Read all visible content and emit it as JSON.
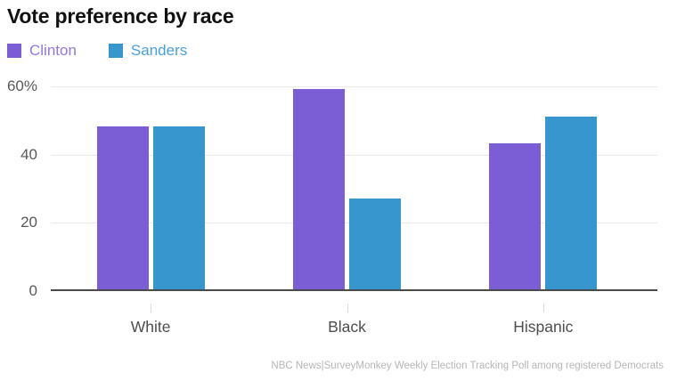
{
  "header": {
    "title": "Vote preference by race"
  },
  "footer": {
    "source": "NBC News|SurveyMonkey Weekly Election Tracking Poll among registered Democrats"
  },
  "colors": {
    "clinton": "#7b5dd6",
    "sanders": "#3896ce",
    "clinton_label_text": "#9377dc",
    "sanders_label_text": "#4a9fd8",
    "gridline": "#e9e9e9",
    "axis_line": "#4a4a4a"
  },
  "chart_data": {
    "type": "bar",
    "title": "Vote preference by race",
    "categories": [
      "White",
      "Black",
      "Hispanic"
    ],
    "series": [
      {
        "name": "Clinton",
        "color": "#7b5dd6",
        "label_color": "#9377dc",
        "values": [
          48,
          59,
          43
        ]
      },
      {
        "name": "Sanders",
        "color": "#3896ce",
        "label_color": "#4a9fd8",
        "values": [
          48,
          27,
          51
        ]
      }
    ],
    "xlabel": "",
    "ylabel": "",
    "ylim": [
      0,
      60
    ],
    "yticks": [
      0,
      20,
      40,
      60
    ],
    "ytick_labels": [
      "0",
      "20",
      "40",
      "60%"
    ],
    "grid": true,
    "legend_position": "top-left",
    "source": "NBC News|SurveyMonkey Weekly Election Tracking Poll among registered Democrats"
  }
}
